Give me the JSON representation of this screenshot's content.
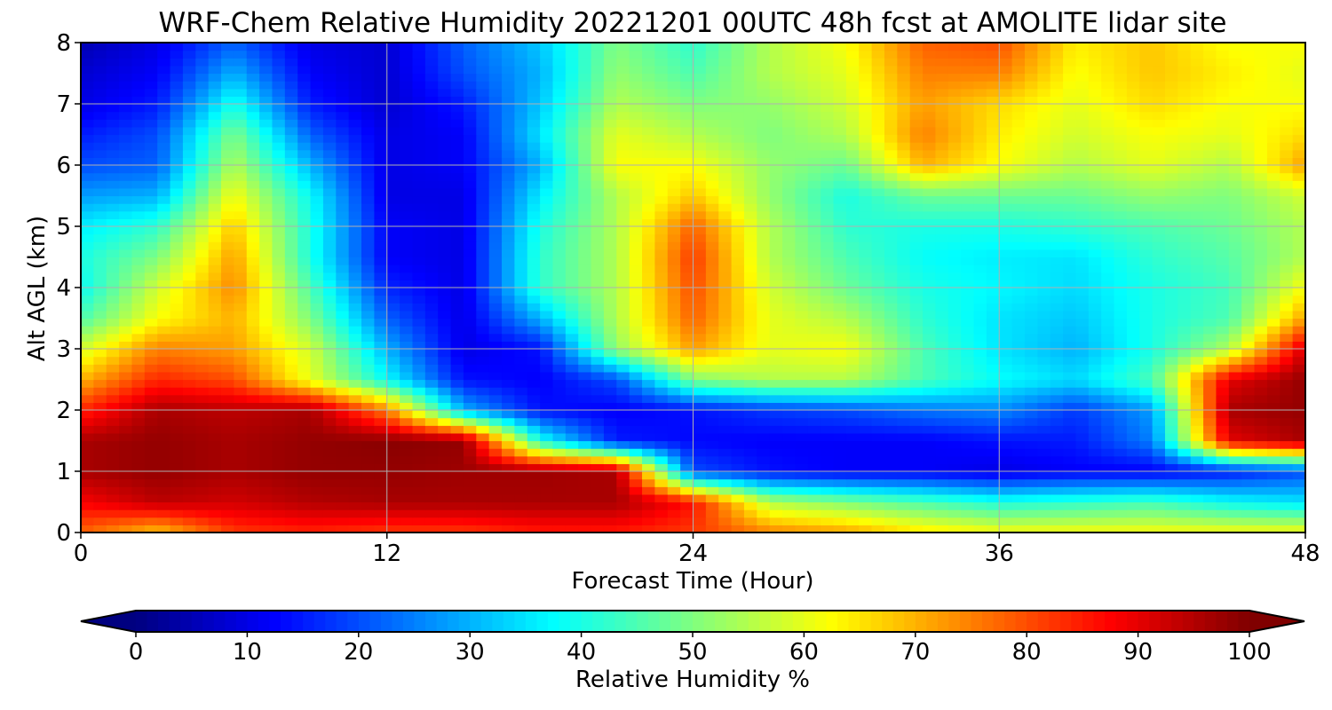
{
  "chart_data": {
    "type": "heatmap",
    "title": "WRF-Chem Relative Humidity 20221201 00UTC 48h fcst at AMOLITE lidar site",
    "xlabel": "Forecast Time (Hour)",
    "ylabel": "Alt AGL (km)",
    "xlim": [
      0,
      48
    ],
    "ylim": [
      0,
      8
    ],
    "x_ticks": [
      "0",
      "12",
      "24",
      "36",
      "48"
    ],
    "y_ticks": [
      "0",
      "1",
      "2",
      "3",
      "4",
      "5",
      "6",
      "7",
      "8"
    ],
    "grid": true,
    "colormap": "jet",
    "colorbar": {
      "label": "Relative Humidity %",
      "orientation": "horizontal",
      "extend": "both",
      "range": [
        0,
        100
      ],
      "ticks": [
        "0",
        "10",
        "20",
        "30",
        "40",
        "50",
        "60",
        "70",
        "80",
        "90",
        "100"
      ]
    },
    "x": [
      0,
      3,
      6,
      9,
      12,
      15,
      18,
      21,
      24,
      27,
      30,
      33,
      36,
      39,
      42,
      45,
      48
    ],
    "y": [
      0,
      0.5,
      1,
      1.5,
      2,
      2.5,
      3,
      3.5,
      4,
      4.5,
      5,
      5.5,
      6,
      6.5,
      7,
      7.5,
      8
    ],
    "z": [
      [
        78,
        68,
        82,
        84,
        82,
        82,
        85,
        85,
        82,
        75,
        72,
        65,
        62,
        62,
        62,
        62,
        62
      ],
      [
        88,
        94,
        92,
        95,
        96,
        96,
        96,
        96,
        86,
        55,
        50,
        45,
        40,
        42,
        44,
        38,
        35
      ],
      [
        96,
        98,
        96,
        98,
        98,
        97,
        97,
        96,
        20,
        14,
        12,
        12,
        10,
        12,
        12,
        15,
        20
      ],
      [
        96,
        98,
        96,
        98,
        99,
        98,
        40,
        15,
        13,
        12,
        12,
        12,
        14,
        15,
        25,
        90,
        96
      ],
      [
        84,
        96,
        94,
        96,
        75,
        30,
        14,
        12,
        14,
        18,
        20,
        24,
        26,
        18,
        28,
        96,
        98
      ],
      [
        70,
        84,
        80,
        60,
        38,
        14,
        12,
        20,
        50,
        55,
        55,
        45,
        38,
        34,
        45,
        90,
        98
      ],
      [
        58,
        75,
        72,
        58,
        30,
        10,
        14,
        52,
        72,
        60,
        62,
        45,
        35,
        30,
        40,
        55,
        92
      ],
      [
        45,
        62,
        70,
        50,
        22,
        10,
        30,
        55,
        78,
        60,
        55,
        42,
        35,
        32,
        40,
        45,
        72
      ],
      [
        38,
        58,
        74,
        45,
        16,
        10,
        42,
        55,
        80,
        58,
        48,
        40,
        37,
        34,
        40,
        44,
        62
      ],
      [
        40,
        50,
        72,
        40,
        12,
        10,
        42,
        55,
        82,
        55,
        45,
        38,
        36,
        35,
        42,
        46,
        55
      ],
      [
        36,
        42,
        68,
        40,
        12,
        10,
        40,
        55,
        78,
        55,
        42,
        40,
        40,
        42,
        45,
        48,
        55
      ],
      [
        28,
        30,
        62,
        38,
        10,
        10,
        36,
        55,
        68,
        52,
        40,
        48,
        48,
        48,
        52,
        50,
        58
      ],
      [
        20,
        22,
        55,
        30,
        10,
        12,
        30,
        62,
        62,
        52,
        48,
        70,
        62,
        55,
        60,
        55,
        72
      ],
      [
        15,
        20,
        50,
        22,
        10,
        12,
        35,
        60,
        55,
        50,
        55,
        75,
        64,
        58,
        62,
        60,
        66
      ],
      [
        10,
        15,
        40,
        15,
        8,
        15,
        32,
        55,
        50,
        52,
        58,
        72,
        66,
        60,
        66,
        62,
        62
      ],
      [
        8,
        12,
        30,
        12,
        8,
        20,
        30,
        52,
        45,
        55,
        60,
        75,
        75,
        62,
        68,
        64,
        60
      ],
      [
        5,
        10,
        22,
        10,
        8,
        22,
        32,
        50,
        42,
        55,
        62,
        78,
        80,
        64,
        68,
        62,
        62
      ]
    ]
  }
}
